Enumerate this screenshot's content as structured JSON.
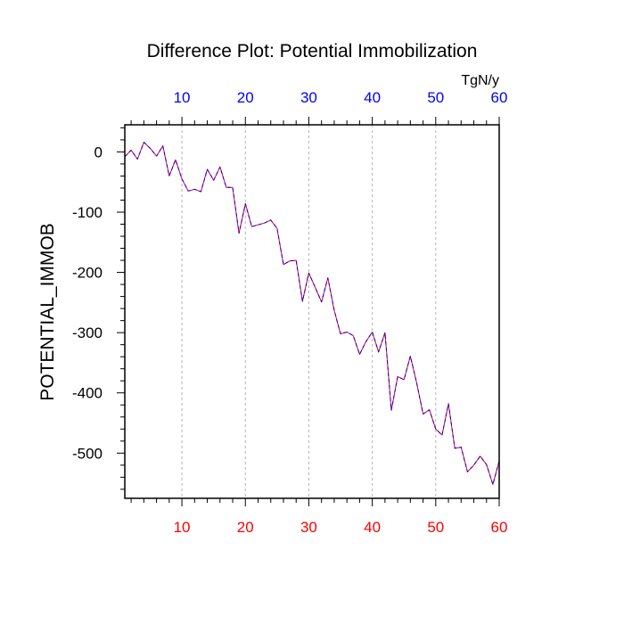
{
  "chart_data": {
    "type": "line",
    "title": "Difference Plot: Potential Immobilization",
    "ylabel": "POTENTIAL_IMMOB",
    "units": "TgN/y",
    "xlim": [
      1,
      60
    ],
    "ylim": [
      -575,
      45
    ],
    "x_ticks": [
      10,
      20,
      30,
      40,
      50,
      60
    ],
    "x_tick_labels": [
      "10",
      "20",
      "30",
      "40",
      "50",
      "60"
    ],
    "y_ticks": [
      0,
      -100,
      -200,
      -300,
      -400,
      -500
    ],
    "y_tick_labels": [
      "0",
      "-100",
      "-200",
      "-300",
      "-400",
      "-500"
    ],
    "vertical_gridlines": true,
    "colors": {
      "bottom_tick_labels": "#ff0000",
      "top_tick_labels": "#0000ff",
      "line_dash": "#0000ff",
      "line_base": "#ff0000"
    },
    "series": [
      {
        "x": [
          1,
          2,
          3,
          4,
          5,
          6,
          7,
          8,
          9,
          10,
          11,
          12,
          13,
          14,
          15,
          16,
          17,
          18,
          19,
          20,
          21,
          22,
          23,
          24,
          25,
          26,
          27,
          28,
          29,
          30,
          31,
          32,
          33,
          34,
          35,
          36,
          37,
          38,
          39,
          40,
          41,
          42,
          43,
          44,
          45,
          46,
          47,
          48,
          49,
          50,
          51,
          52,
          53,
          54,
          55,
          56,
          57,
          58,
          59,
          60
        ],
        "values": [
          -8,
          3,
          -12,
          16,
          6,
          -7,
          10,
          -40,
          -13,
          -45,
          -65,
          -62,
          -66,
          -29,
          -47,
          -25,
          -59,
          -59,
          -135,
          -86,
          -124,
          -121,
          -118,
          -113,
          -127,
          -187,
          -181,
          -180,
          -248,
          -201,
          -225,
          -249,
          -209,
          -263,
          -302,
          -299,
          -305,
          -336,
          -315,
          -299,
          -332,
          -300,
          -429,
          -373,
          -378,
          -339,
          -384,
          -435,
          -428,
          -460,
          -470,
          -418,
          -492,
          -490,
          -531,
          -520,
          -505,
          -519,
          -552,
          -513
        ]
      }
    ]
  }
}
